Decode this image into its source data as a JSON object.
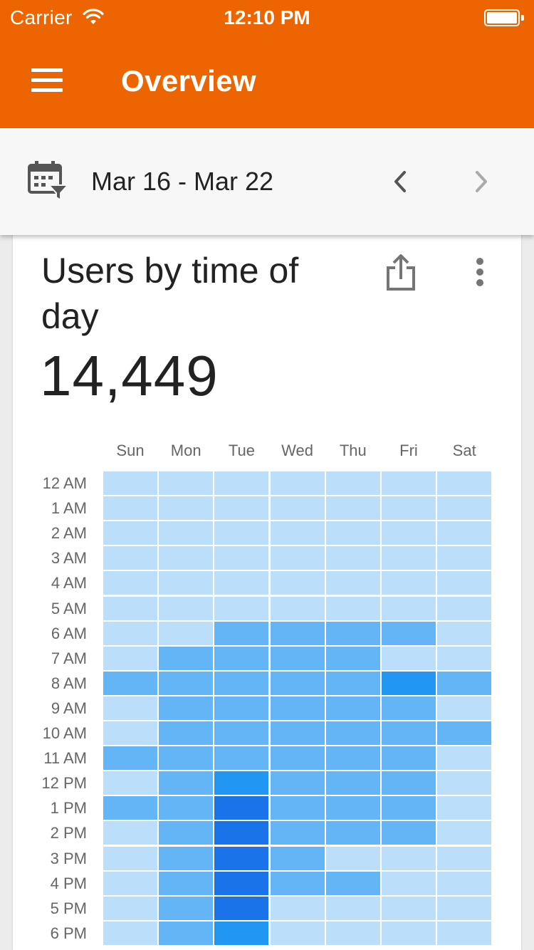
{
  "status_bar": {
    "carrier": "Carrier",
    "time": "12:10 PM"
  },
  "header": {
    "title": "Overview",
    "menu_icon": "hamburger-menu-icon"
  },
  "date_bar": {
    "range": "Mar 16 - Mar 22",
    "calendar_icon": "calendar-filter-icon"
  },
  "card": {
    "title": "Users by time of day",
    "total": "14,449",
    "share_icon": "share-icon",
    "more_icon": "more-vertical-icon"
  },
  "colors": {
    "header": "#ec6500",
    "level_0": "#bbdefb",
    "level_1": "#64b5f6",
    "level_2": "#2196f3",
    "level_3": "#1a73e8"
  },
  "chart_data": {
    "type": "heatmap",
    "x_categories": [
      "Sun",
      "Mon",
      "Tue",
      "Wed",
      "Thu",
      "Fri",
      "Sat"
    ],
    "y_categories": [
      "12 AM",
      "1 AM",
      "2 AM",
      "3 AM",
      "4 AM",
      "5 AM",
      "6 AM",
      "7 AM",
      "8 AM",
      "9 AM",
      "10 AM",
      "11 AM",
      "12 PM",
      "1 PM",
      "2 PM",
      "3 PM",
      "4 PM",
      "5 PM",
      "6 PM"
    ],
    "levels": [
      [
        0,
        0,
        0,
        0,
        0,
        0,
        0
      ],
      [
        0,
        0,
        0,
        0,
        0,
        0,
        0
      ],
      [
        0,
        0,
        0,
        0,
        0,
        0,
        0
      ],
      [
        0,
        0,
        0,
        0,
        0,
        0,
        0
      ],
      [
        0,
        0,
        0,
        0,
        0,
        0,
        0
      ],
      [
        0,
        0,
        0,
        0,
        0,
        0,
        0
      ],
      [
        0,
        0,
        1,
        1,
        1,
        1,
        0
      ],
      [
        0,
        1,
        1,
        1,
        1,
        0,
        0
      ],
      [
        1,
        1,
        1,
        1,
        1,
        2,
        1
      ],
      [
        0,
        1,
        1,
        1,
        1,
        1,
        0
      ],
      [
        0,
        1,
        1,
        1,
        1,
        1,
        1
      ],
      [
        1,
        1,
        1,
        1,
        1,
        1,
        0
      ],
      [
        0,
        1,
        2,
        1,
        1,
        1,
        0
      ],
      [
        1,
        1,
        3,
        1,
        1,
        1,
        0
      ],
      [
        0,
        1,
        3,
        1,
        1,
        1,
        0
      ],
      [
        0,
        1,
        3,
        1,
        0,
        0,
        0
      ],
      [
        0,
        1,
        3,
        1,
        1,
        0,
        0
      ],
      [
        0,
        1,
        3,
        0,
        0,
        0,
        0
      ],
      [
        0,
        1,
        2,
        0,
        0,
        0,
        0
      ]
    ]
  }
}
